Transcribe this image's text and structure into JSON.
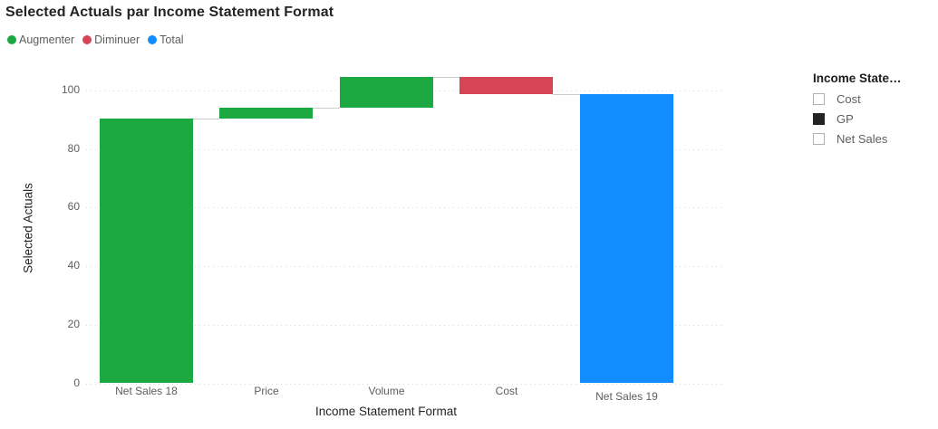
{
  "chart_data": {
    "type": "waterfall",
    "title": "Selected Actuals par Income Statement Format",
    "xlabel": "Income Statement Format",
    "ylabel": "Selected Actuals",
    "categories": [
      "Net Sales 18",
      "Price",
      "Volume",
      "Cost",
      "Net Sales 19"
    ],
    "steps": [
      {
        "label": "Net Sales 18",
        "type": "increase",
        "delta": 90.4
      },
      {
        "label": "Price",
        "type": "increase",
        "delta": 3.7
      },
      {
        "label": "Volume",
        "type": "increase",
        "delta": 10.5
      },
      {
        "label": "Cost",
        "type": "decrease",
        "delta": -5.9
      },
      {
        "label": "Net Sales 19",
        "type": "total",
        "value": 98.7,
        "label_dy": 6
      }
    ],
    "y_ticks": [
      0,
      20,
      40,
      60,
      80,
      100
    ],
    "ylim": [
      0,
      104.6
    ],
    "grid": "dotted",
    "legend_position": "top-left",
    "colors": {
      "increase": "#1CA941",
      "decrease": "#D64554",
      "total": "#118DFF"
    },
    "legend": [
      {
        "label": "Augmenter",
        "color": "#1CA941"
      },
      {
        "label": "Diminuer",
        "color": "#D64554"
      },
      {
        "label": "Total",
        "color": "#118DFF"
      }
    ]
  },
  "slicer": {
    "title": "Income State…",
    "items": [
      {
        "label": "Cost",
        "selected": false
      },
      {
        "label": "GP",
        "selected": true
      },
      {
        "label": "Net Sales",
        "selected": false
      }
    ]
  }
}
